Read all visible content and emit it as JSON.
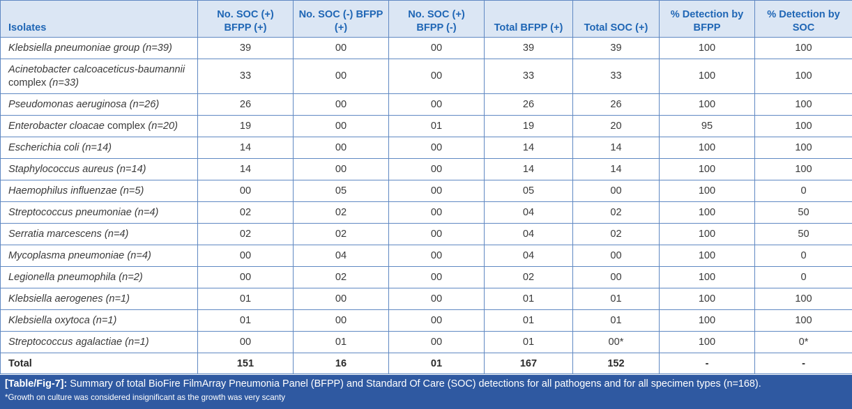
{
  "table": {
    "headers": [
      "Isolates",
      "No. SOC (+) BFPP (+)",
      "No. SOC (-) BFPP (+)",
      "No. SOC (+) BFPP (-)",
      "Total BFPP (+)",
      "Total SOC (+)",
      "% Detection by BFPP",
      "% Detection by SOC"
    ],
    "rows": [
      {
        "name": "Klebsiella pneumoniae group",
        "n": "(n=39)",
        "values": [
          "39",
          "00",
          "00",
          "39",
          "39",
          "100",
          "100"
        ]
      },
      {
        "name": "Acinetobacter calcoaceticus-baumannii",
        "name_plain": "complex",
        "n": "(n=33)",
        "values": [
          "33",
          "00",
          "00",
          "33",
          "33",
          "100",
          "100"
        ]
      },
      {
        "name": "Pseudomonas aeruginosa",
        "n": "(n=26)",
        "values": [
          "26",
          "00",
          "00",
          "26",
          "26",
          "100",
          "100"
        ]
      },
      {
        "name": "Enterobacter cloacae",
        "name_plain": "complex",
        "n": "(n=20)",
        "values": [
          "19",
          "00",
          "01",
          "19",
          "20",
          "95",
          "100"
        ]
      },
      {
        "name": "Escherichia coli",
        "n": "(n=14)",
        "values": [
          "14",
          "00",
          "00",
          "14",
          "14",
          "100",
          "100"
        ]
      },
      {
        "name": "Staphylococcus aureus",
        "n": "(n=14)",
        "values": [
          "14",
          "00",
          "00",
          "14",
          "14",
          "100",
          "100"
        ]
      },
      {
        "name": "Haemophilus influenzae",
        "n": "(n=5)",
        "values": [
          "00",
          "05",
          "00",
          "05",
          "00",
          "100",
          "0"
        ]
      },
      {
        "name": "Streptococcus pneumoniae",
        "n": "(n=4)",
        "values": [
          "02",
          "02",
          "00",
          "04",
          "02",
          "100",
          "50"
        ]
      },
      {
        "name": "Serratia marcescens",
        "n": "(n=4)",
        "values": [
          "02",
          "02",
          "00",
          "04",
          "02",
          "100",
          "50"
        ]
      },
      {
        "name": "Mycoplasma pneumoniae",
        "n": "(n=4)",
        "values": [
          "00",
          "04",
          "00",
          "04",
          "00",
          "100",
          "0"
        ]
      },
      {
        "name": "Legionella pneumophila",
        "n": "(n=2)",
        "values": [
          "00",
          "02",
          "00",
          "02",
          "00",
          "100",
          "0"
        ]
      },
      {
        "name": "Klebsiella aerogenes",
        "n": "(n=1)",
        "values": [
          "01",
          "00",
          "00",
          "01",
          "01",
          "100",
          "100"
        ]
      },
      {
        "name": "Klebsiella oxytoca",
        "n": "(n=1)",
        "values": [
          "01",
          "00",
          "00",
          "01",
          "01",
          "100",
          "100"
        ]
      },
      {
        "name": "Streptococcus agalactiae",
        "n": "(n=1)",
        "values": [
          "00",
          "01",
          "00",
          "01",
          "00*",
          "100",
          "0*"
        ]
      }
    ],
    "total": {
      "label": "Total",
      "values": [
        "151",
        "16",
        "01",
        "167",
        "152",
        "-",
        "-"
      ]
    }
  },
  "caption": {
    "label": "[Table/Fig-7]:",
    "text": "Summary of total BioFire FilmArray Pneumonia Panel (BFPP) and Standard Of Care (SOC) detections for all pathogens and for all specimen types (n=168).",
    "footnote": "*Growth on culture was considered insignificant as the growth was very scanty"
  },
  "colors": {
    "header_bg": "#dbe6f4",
    "header_text": "#1f66b5",
    "border": "#5f88c2",
    "caption_bg": "#2f59a1"
  }
}
